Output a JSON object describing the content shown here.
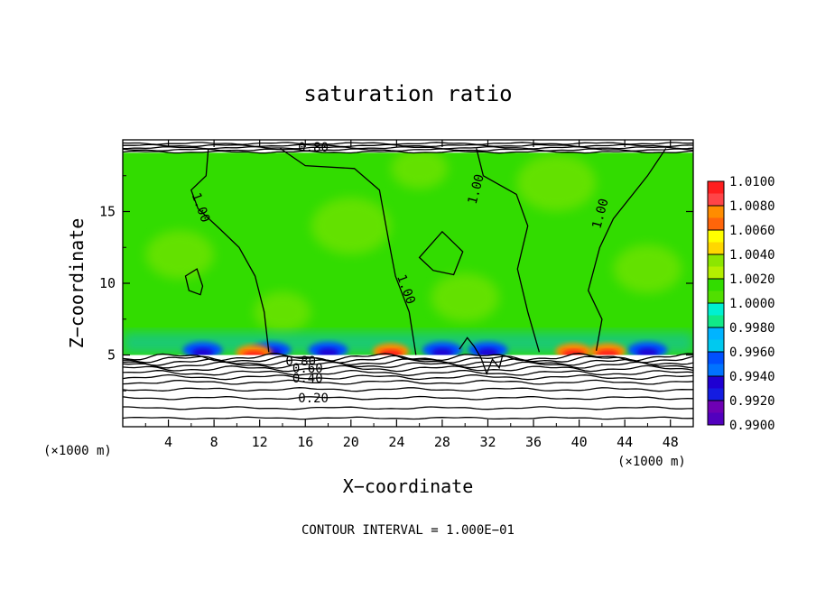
{
  "chart_data": {
    "type": "heatmap",
    "title": "saturation ratio",
    "xlabel": "X−coordinate",
    "ylabel": "Z−coordinate",
    "x_unit": "(×1000 m)",
    "y_unit": "(×1000 m)",
    "xlim": [
      0,
      50
    ],
    "ylim": [
      0,
      20
    ],
    "x_ticks": [
      "4",
      "8",
      "12",
      "16",
      "20",
      "24",
      "28",
      "32",
      "36",
      "40",
      "44",
      "48"
    ],
    "y_ticks": [
      "5",
      "10",
      "15"
    ],
    "colorbar": {
      "ticks": [
        "0.9900",
        "0.9920",
        "0.9940",
        "0.9960",
        "0.9980",
        "1.0000",
        "1.0020",
        "1.0040",
        "1.0060",
        "1.0080",
        "1.0100"
      ],
      "colors": [
        "#6e00b4",
        "#1f00d2",
        "#0050ff",
        "#00b4ff",
        "#00f0d2",
        "#32dc00",
        "#8ce600",
        "#ffff00",
        "#ff8c00",
        "#ff1e1e",
        "#ff8c96"
      ]
    },
    "background_level": "1.0000",
    "contour_labels": [
      {
        "text": "0.80",
        "x": 16.7,
        "z": 19.5
      },
      {
        "text": "1.00",
        "x": 6.5,
        "z": 15.5
      },
      {
        "text": "1.00",
        "x": 24.5,
        "z": 9.8
      },
      {
        "text": "1.00",
        "x": 31.3,
        "z": 16.8
      },
      {
        "text": "1.00",
        "x": 42.2,
        "z": 15.1
      },
      {
        "text": "0.80",
        "x": 15.6,
        "z": 4.6
      },
      {
        "text": "0.60",
        "x": 16.2,
        "z": 4.1
      },
      {
        "text": "0.40",
        "x": 16.2,
        "z": 3.4
      },
      {
        "text": "0.20",
        "x": 16.7,
        "z": 2.0
      }
    ],
    "anomalies": [
      {
        "type": "low",
        "x": 7,
        "z": 5.6
      },
      {
        "type": "low",
        "x": 13,
        "z": 5.6
      },
      {
        "type": "low",
        "x": 18,
        "z": 5.6
      },
      {
        "type": "low",
        "x": 28,
        "z": 5.6
      },
      {
        "type": "low",
        "x": 32,
        "z": 5.6
      },
      {
        "type": "low",
        "x": 46,
        "z": 5.6
      },
      {
        "type": "high",
        "x": 11.5,
        "z": 5.4
      },
      {
        "type": "high",
        "x": 23.5,
        "z": 5.5
      },
      {
        "type": "high",
        "x": 39.5,
        "z": 5.5
      },
      {
        "type": "high",
        "x": 42.5,
        "z": 5.5
      }
    ]
  },
  "footer": {
    "contour_interval": "CONTOUR INTERVAL = 1.000E−01"
  }
}
